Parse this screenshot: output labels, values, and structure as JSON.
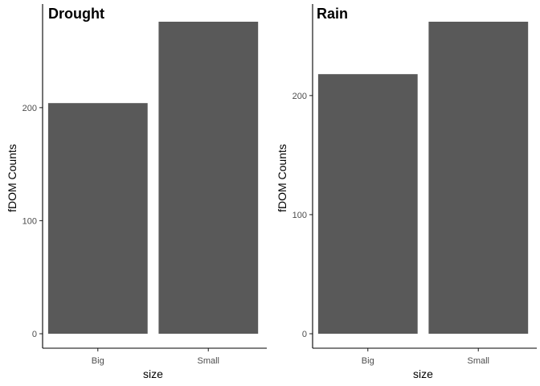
{
  "chart_data": [
    {
      "type": "bar",
      "title": "Drought",
      "xlabel": "size",
      "ylabel": "fDOM Counts",
      "categories": [
        "Big",
        "Small"
      ],
      "values": [
        204,
        276
      ],
      "ylim": [
        0,
        276
      ],
      "yticks": [
        0,
        100,
        200
      ],
      "grid": false,
      "bar_color": "#595959"
    },
    {
      "type": "bar",
      "title": "Rain",
      "xlabel": "size",
      "ylabel": "fDOM Counts",
      "categories": [
        "Big",
        "Small"
      ],
      "values": [
        218,
        262
      ],
      "ylim": [
        0,
        262
      ],
      "yticks": [
        0,
        100,
        200
      ],
      "grid": false,
      "bar_color": "#595959"
    }
  ]
}
